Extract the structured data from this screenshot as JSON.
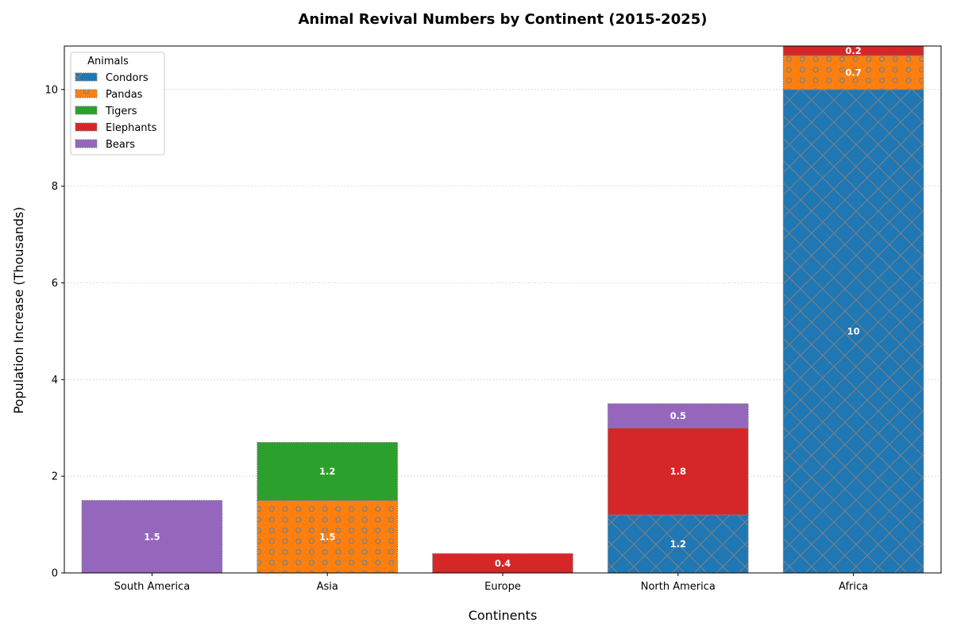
{
  "chart_data": {
    "type": "bar",
    "stacked": true,
    "title": "Animal Revival Numbers by Continent (2015-2025)",
    "xlabel": "Continents",
    "ylabel": "Population Increase (Thousands)",
    "ylim": [
      0,
      10.9
    ],
    "yticks": [
      0,
      2,
      4,
      6,
      8,
      10
    ],
    "grid": "y-dotted",
    "categories": [
      "South America",
      "Asia",
      "Europe",
      "North America",
      "Africa"
    ],
    "series": [
      {
        "name": "Condors",
        "color": "#1f77b4",
        "hatch": "cross",
        "values": [
          0,
          0,
          0,
          1.2,
          10
        ]
      },
      {
        "name": "Pandas",
        "color": "#ff7f0e",
        "hatch": "circles",
        "values": [
          0,
          1.5,
          0,
          0,
          0.7
        ]
      },
      {
        "name": "Tigers",
        "color": "#2ca02c",
        "hatch": "none",
        "values": [
          0,
          1.2,
          0,
          0,
          0
        ]
      },
      {
        "name": "Elephants",
        "color": "#d62728",
        "hatch": "none",
        "values": [
          0,
          0,
          0.4,
          1.8,
          0.2
        ]
      },
      {
        "name": "Bears",
        "color": "#9467bd",
        "hatch": "none",
        "values": [
          1.5,
          0,
          0,
          0.5,
          0
        ]
      }
    ],
    "legend": {
      "title": "Animals",
      "position": "top-left"
    }
  }
}
